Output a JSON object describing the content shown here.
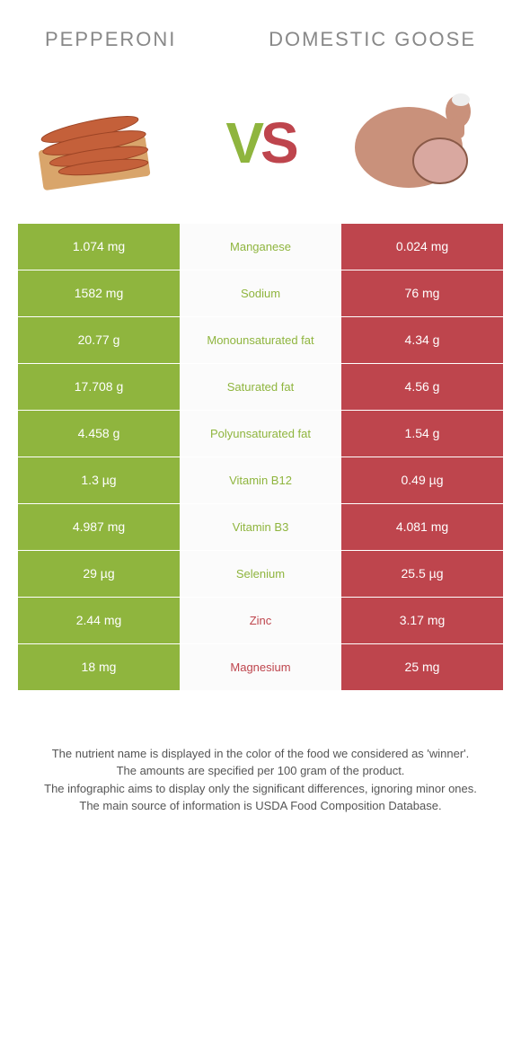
{
  "header": {
    "left_title": "Pepperoni",
    "right_title": "Domestic goose"
  },
  "vs": {
    "v": "V",
    "s": "S"
  },
  "colors": {
    "green": "#8fb53e",
    "red": "#be454d",
    "mid_bg": "#fbfbfb",
    "page_bg": "#ffffff",
    "text": "#555555"
  },
  "rows": [
    {
      "left": "1.074 mg",
      "label": "Manganese",
      "right": "0.024 mg",
      "winner": "left"
    },
    {
      "left": "1582 mg",
      "label": "Sodium",
      "right": "76 mg",
      "winner": "left"
    },
    {
      "left": "20.77 g",
      "label": "Monounsaturated fat",
      "right": "4.34 g",
      "winner": "left"
    },
    {
      "left": "17.708 g",
      "label": "Saturated fat",
      "right": "4.56 g",
      "winner": "left"
    },
    {
      "left": "4.458 g",
      "label": "Polyunsaturated fat",
      "right": "1.54 g",
      "winner": "left"
    },
    {
      "left": "1.3 µg",
      "label": "Vitamin B12",
      "right": "0.49 µg",
      "winner": "left"
    },
    {
      "left": "4.987 mg",
      "label": "Vitamin B3",
      "right": "4.081 mg",
      "winner": "left"
    },
    {
      "left": "29 µg",
      "label": "Selenium",
      "right": "25.5 µg",
      "winner": "left"
    },
    {
      "left": "2.44 mg",
      "label": "Zinc",
      "right": "3.17 mg",
      "winner": "right"
    },
    {
      "left": "18 mg",
      "label": "Magnesium",
      "right": "25 mg",
      "winner": "right"
    }
  ],
  "footer": {
    "line1": "The nutrient name is displayed in the color of the food we considered as 'winner'.",
    "line2": "The amounts are specified per 100 gram of the product.",
    "line3": "The infographic aims to display only the significant differences, ignoring minor ones.",
    "line4": "The main source of information is USDA Food Composition Database."
  }
}
